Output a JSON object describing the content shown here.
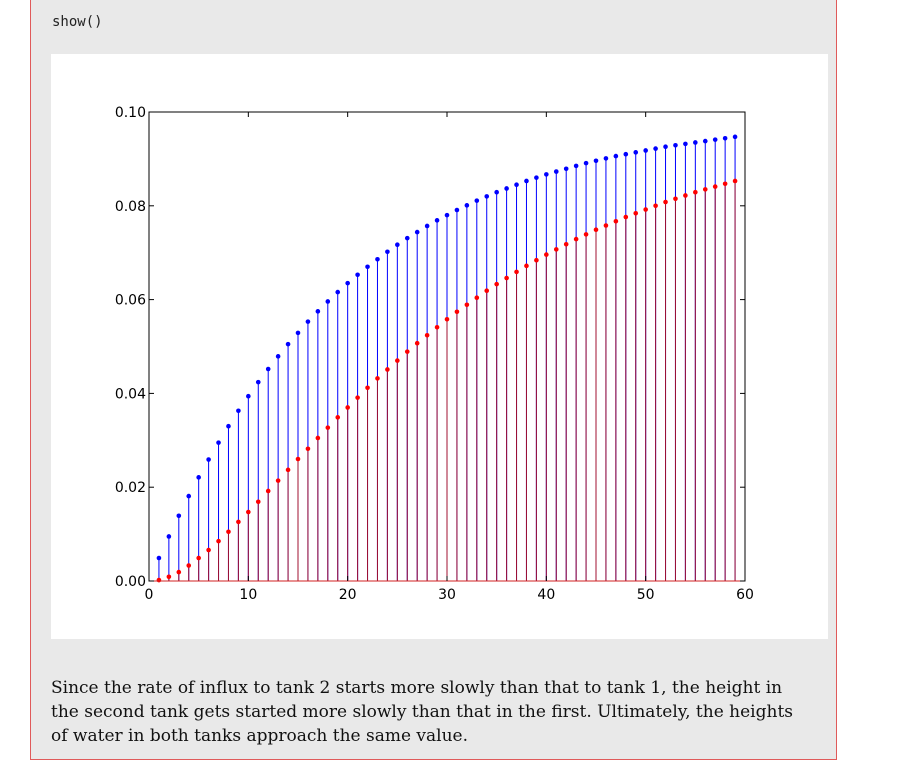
{
  "code_cell": {
    "text": "show()"
  },
  "caption": {
    "text": "Since the rate of influx to tank 2 starts more slowly than that to tank 1, the height in the second tank gets started more slowly than that in the first. Ultimately, the heights of water in both tanks approach the same value."
  },
  "colors": {
    "tank1": "#0000ff",
    "tank2": "#ff0000",
    "tank2_stem": "#a01030"
  },
  "chart_data": {
    "type": "stem",
    "xlim": [
      0,
      60
    ],
    "ylim": [
      0,
      0.1
    ],
    "xticks": [
      0,
      10,
      20,
      30,
      40,
      50,
      60
    ],
    "xtick_labels": [
      "0",
      "10",
      "20",
      "30",
      "40",
      "50",
      "60"
    ],
    "yticks": [
      0.0,
      0.02,
      0.04,
      0.06,
      0.08,
      0.1
    ],
    "ytick_labels": [
      "0.00",
      "0.02",
      "0.04",
      "0.06",
      "0.08",
      "0.10"
    ],
    "title": "",
    "xlabel": "",
    "ylabel": "",
    "x": [
      1,
      2,
      3,
      4,
      5,
      6,
      7,
      8,
      9,
      10,
      11,
      12,
      13,
      14,
      15,
      16,
      17,
      18,
      19,
      20,
      21,
      22,
      23,
      24,
      25,
      26,
      27,
      28,
      29,
      30,
      31,
      32,
      33,
      34,
      35,
      36,
      37,
      38,
      39,
      40,
      41,
      42,
      43,
      44,
      45,
      46,
      47,
      48,
      49,
      50,
      51,
      52,
      53,
      54,
      55,
      56,
      57,
      58,
      59
    ],
    "series": [
      {
        "values": [
          0.0049,
          0.0095,
          0.0139,
          0.0181,
          0.0221,
          0.0259,
          0.0295,
          0.033,
          0.0363,
          0.0394,
          0.0424,
          0.0452,
          0.0479,
          0.0505,
          0.0529,
          0.0553,
          0.0575,
          0.0596,
          0.0616,
          0.0635,
          0.0653,
          0.067,
          0.0686,
          0.0702,
          0.0717,
          0.0731,
          0.0744,
          0.0757,
          0.0769,
          0.078,
          0.0791,
          0.0801,
          0.0811,
          0.082,
          0.0829,
          0.0837,
          0.0845,
          0.0853,
          0.086,
          0.0867,
          0.0873,
          0.0879,
          0.0885,
          0.0891,
          0.0896,
          0.0901,
          0.0906,
          0.091,
          0.0914,
          0.0918,
          0.0922,
          0.0926,
          0.0929,
          0.0932,
          0.0935,
          0.0938,
          0.0941,
          0.0944,
          0.0947
        ]
      },
      {
        "values": [
          0.0002,
          0.0009,
          0.0019,
          0.0033,
          0.0049,
          0.0066,
          0.0085,
          0.0105,
          0.0126,
          0.0147,
          0.0169,
          0.0192,
          0.0214,
          0.0237,
          0.026,
          0.0282,
          0.0305,
          0.0327,
          0.0349,
          0.037,
          0.0391,
          0.0412,
          0.0432,
          0.0451,
          0.047,
          0.0489,
          0.0507,
          0.0524,
          0.0541,
          0.0558,
          0.0574,
          0.0589,
          0.0604,
          0.0619,
          0.0633,
          0.0646,
          0.0659,
          0.0672,
          0.0684,
          0.0696,
          0.0707,
          0.0718,
          0.0729,
          0.0739,
          0.0749,
          0.0758,
          0.0767,
          0.0776,
          0.0784,
          0.0792,
          0.08,
          0.0808,
          0.0815,
          0.0822,
          0.0829,
          0.0835,
          0.0841,
          0.0847,
          0.0853
        ]
      }
    ]
  }
}
